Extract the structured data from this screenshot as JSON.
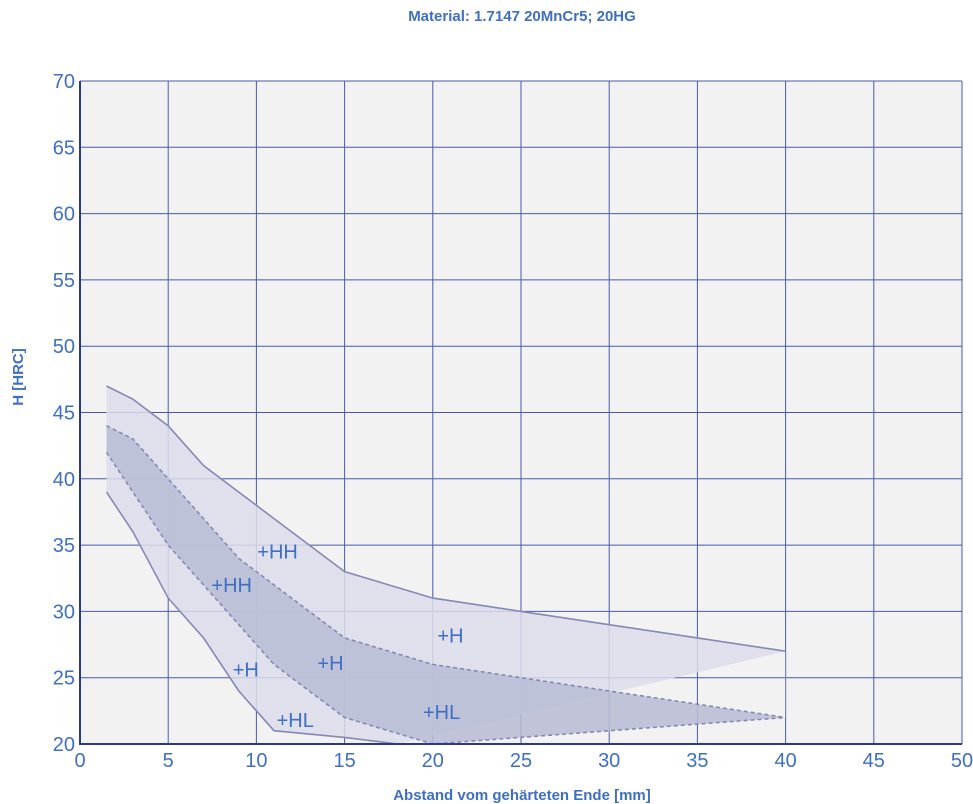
{
  "chart_data": {
    "type": "area",
    "title": "Material: 1.7147 20MnCr5; 20HG",
    "xlabel": "Abstand vom gehärteten Ende [mm]",
    "ylabel": "H [HRC]",
    "xlim": [
      0,
      50
    ],
    "ylim": [
      20,
      70
    ],
    "x_ticks": [
      0,
      5,
      10,
      15,
      20,
      25,
      30,
      35,
      40,
      45,
      50
    ],
    "y_ticks": [
      20,
      25,
      30,
      35,
      40,
      45,
      50,
      55,
      60,
      65,
      70
    ],
    "grid": true,
    "series": [
      {
        "key": "max",
        "style": "solid",
        "points": [
          [
            1.5,
            47
          ],
          [
            3,
            46
          ],
          [
            5,
            44
          ],
          [
            7,
            41
          ],
          [
            9,
            39
          ],
          [
            11,
            37
          ],
          [
            13,
            35
          ],
          [
            15,
            33
          ],
          [
            20,
            31
          ],
          [
            25,
            30
          ],
          [
            30,
            29
          ],
          [
            35,
            28
          ],
          [
            40,
            27
          ]
        ]
      },
      {
        "key": "upper_mid",
        "style": "dashed",
        "points": [
          [
            1.5,
            44
          ],
          [
            3,
            43
          ],
          [
            5,
            40
          ],
          [
            7,
            37
          ],
          [
            9,
            34
          ],
          [
            11,
            32
          ],
          [
            13,
            30
          ],
          [
            15,
            28
          ],
          [
            20,
            26
          ],
          [
            25,
            25
          ],
          [
            30,
            24
          ],
          [
            35,
            23
          ],
          [
            40,
            22
          ]
        ]
      },
      {
        "key": "lower_mid",
        "style": "dashed",
        "points": [
          [
            1.5,
            42
          ],
          [
            3,
            39
          ],
          [
            5,
            35
          ],
          [
            7,
            32
          ],
          [
            9,
            29
          ],
          [
            11,
            26
          ],
          [
            13,
            24
          ],
          [
            15,
            22
          ],
          [
            20,
            20
          ],
          [
            40,
            22
          ]
        ]
      },
      {
        "key": "min",
        "style": "solid",
        "points": [
          [
            1.5,
            39
          ],
          [
            3,
            36
          ],
          [
            5,
            31
          ],
          [
            7,
            28
          ],
          [
            9,
            24
          ],
          [
            11,
            21
          ],
          [
            15,
            20.5
          ],
          [
            18,
            20
          ]
        ]
      }
    ],
    "annotations": [
      {
        "text": "+HH",
        "x": 11.2,
        "y": 34.5
      },
      {
        "text": "+HH",
        "x": 8.6,
        "y": 32
      },
      {
        "text": "+H",
        "x": 21,
        "y": 28.2
      },
      {
        "text": "+H",
        "x": 14.2,
        "y": 26.1
      },
      {
        "text": "+H",
        "x": 9.4,
        "y": 25.6
      },
      {
        "text": "+HL",
        "x": 20.5,
        "y": 22.4
      },
      {
        "text": "+HL",
        "x": 12.2,
        "y": 21.8
      }
    ],
    "colors": {
      "text": "#3e6fc4",
      "axis": "#2b3a86",
      "grid": "#4a5aa8",
      "plot_bg": "#f2f2f2",
      "line": "#8588b7",
      "outer_fill": "#dcddea",
      "inner_fill": "#b9bcd5"
    }
  }
}
